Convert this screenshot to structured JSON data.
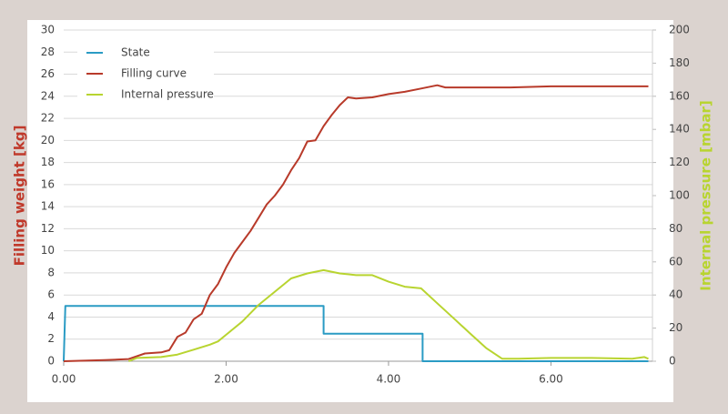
{
  "chart_data": {
    "type": "line",
    "y_label": "Filling weight [kg]",
    "y2_label": "Internal pressure [mbar]",
    "xlim": [
      0,
      7.25
    ],
    "xticks": [
      {
        "value": 0,
        "label": "0.00"
      },
      {
        "value": 2,
        "label": "2.00"
      },
      {
        "value": 4,
        "label": "4.00"
      },
      {
        "value": 6,
        "label": "6.00"
      }
    ],
    "ylim": [
      0,
      30
    ],
    "yticks": [
      0,
      2,
      4,
      6,
      8,
      10,
      12,
      14,
      16,
      18,
      20,
      22,
      24,
      26,
      28,
      30
    ],
    "y2lim": [
      0,
      200
    ],
    "y2ticks": [
      0,
      20,
      40,
      60,
      80,
      100,
      120,
      140,
      160,
      180,
      200
    ],
    "grid": true,
    "legend": "top-left",
    "series": [
      {
        "name": "State",
        "color": "#2a9bc4",
        "x": [
          0,
          0.02,
          3.2,
          3.2,
          4.42,
          4.42,
          7.2
        ],
        "values": [
          0,
          5,
          5,
          2.5,
          2.5,
          0,
          0
        ]
      },
      {
        "name": "Filling curve",
        "color": "#b83a2a",
        "x": [
          0,
          0.5,
          0.8,
          1.0,
          1.2,
          1.3,
          1.4,
          1.5,
          1.6,
          1.7,
          1.8,
          1.9,
          2.0,
          2.1,
          2.2,
          2.3,
          2.4,
          2.5,
          2.6,
          2.7,
          2.8,
          2.9,
          3.0,
          3.1,
          3.2,
          3.3,
          3.4,
          3.5,
          3.6,
          3.8,
          4.0,
          4.2,
          4.4,
          4.6,
          4.7,
          5.0,
          5.5,
          6.0,
          7.2
        ],
        "values": [
          0,
          0.1,
          0.2,
          0.7,
          0.8,
          1.0,
          2.2,
          2.6,
          3.8,
          4.3,
          6.0,
          7.0,
          8.5,
          9.8,
          10.8,
          11.8,
          13.0,
          14.2,
          15.0,
          16.0,
          17.3,
          18.4,
          19.9,
          20.0,
          21.3,
          22.3,
          23.2,
          23.9,
          23.8,
          23.9,
          24.2,
          24.4,
          24.7,
          25.0,
          24.8,
          24.8,
          24.8,
          24.9,
          24.9
        ]
      },
      {
        "name": "Internal pressure",
        "color": "#b8d430",
        "axis": "y2",
        "x": [
          0.8,
          0.9,
          1.2,
          1.4,
          1.6,
          1.8,
          1.9,
          2.0,
          2.2,
          2.4,
          2.6,
          2.8,
          3.0,
          3.2,
          3.4,
          3.6,
          3.8,
          4.0,
          4.2,
          4.4,
          4.6,
          4.8,
          5.0,
          5.2,
          5.4,
          5.6,
          6.0,
          6.5,
          7.0,
          7.15,
          7.2
        ],
        "values": [
          0,
          2,
          2.5,
          4,
          7,
          10,
          12,
          16,
          24,
          34,
          42,
          50,
          53,
          55,
          53,
          52,
          52,
          48,
          45,
          44,
          35,
          26,
          17,
          8,
          1.5,
          1.5,
          2,
          2,
          1.5,
          2.5,
          1.5
        ]
      }
    ]
  }
}
